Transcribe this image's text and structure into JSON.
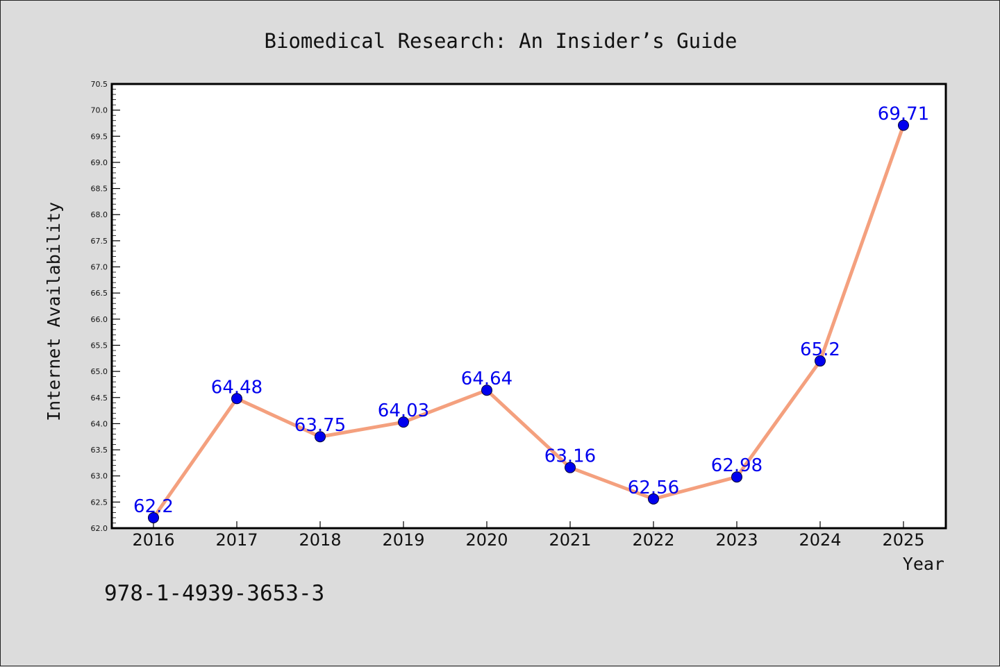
{
  "chart_data": {
    "type": "line",
    "title": "Biomedical Research: An Insider’s Guide",
    "xlabel": "Year",
    "ylabel": "Internet Availability",
    "categories": [
      "2016",
      "2017",
      "2018",
      "2019",
      "2020",
      "2021",
      "2022",
      "2023",
      "2024",
      "2025"
    ],
    "values": [
      62.2,
      64.48,
      63.75,
      64.03,
      64.64,
      63.16,
      62.56,
      62.98,
      65.2,
      69.71
    ],
    "data_labels": [
      "62.2",
      "64.48",
      "63.75",
      "64.03",
      "64.64",
      "63.16",
      "62.56",
      "62.98",
      "65.2",
      "69.71"
    ],
    "ylim": [
      62.0,
      70.5
    ],
    "yticks": [
      "62.0",
      "62.5",
      "63.0",
      "63.5",
      "64.0",
      "64.5",
      "65.0",
      "65.5",
      "66.0",
      "66.5",
      "67.0",
      "67.5",
      "68.0",
      "68.5",
      "69.0",
      "69.5",
      "70.0",
      "70.5"
    ],
    "grid": false,
    "legend": "none",
    "colors": {
      "line": "#f4a07e",
      "marker": "#0000ee",
      "label": "#0000ee",
      "plot_background": "#ffffff",
      "figure_background": "#dcdcdc"
    }
  },
  "footer": {
    "isbn": "978-1-4939-3653-3"
  }
}
